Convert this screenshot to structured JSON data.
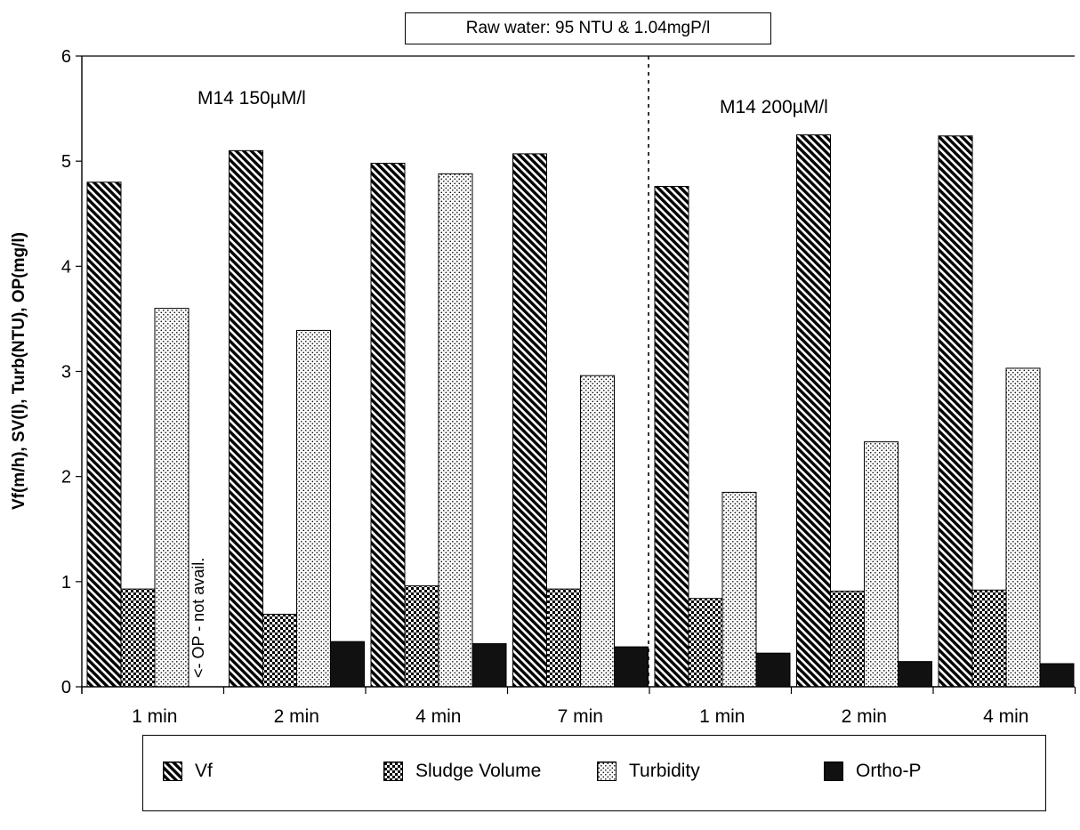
{
  "chart_data": {
    "type": "bar",
    "title": "Raw water: 95 NTU & 1.04mgP/l",
    "ylabel": "Vf(m/h), SV(l), Turb(NTU), OP(mg/l)",
    "xlabel": "",
    "ylim": [
      0,
      6
    ],
    "yticks": [
      "0",
      "1",
      "2",
      "3",
      "4",
      "5",
      "6"
    ],
    "categories": [
      "1 min",
      "2 min",
      "4 min",
      "7 min",
      "1 min",
      "2 min",
      "4 min"
    ],
    "series": [
      {
        "name": "Vf",
        "values": [
          4.8,
          5.1,
          4.98,
          5.07,
          4.76,
          5.25,
          5.24
        ],
        "pattern": "hatch"
      },
      {
        "name": "Sludge Volume",
        "values": [
          0.93,
          0.69,
          0.96,
          0.93,
          0.84,
          0.91,
          0.92
        ],
        "pattern": "checker"
      },
      {
        "name": "Turbidity",
        "values": [
          3.6,
          3.39,
          4.88,
          2.96,
          1.85,
          2.33,
          3.03
        ],
        "pattern": "dots"
      },
      {
        "name": "Ortho-P",
        "values": [
          null,
          0.43,
          0.41,
          0.38,
          0.32,
          0.24,
          0.22
        ],
        "pattern": "solid"
      }
    ],
    "group_labels": [
      "M14 150µM/l",
      "M14 200µM/l"
    ],
    "annotations": [
      "<- OP - not avail."
    ],
    "legend_position": "bottom",
    "grid": false
  },
  "colors": {
    "ortho_p": "#111111",
    "axis": "#000000",
    "background": "#ffffff"
  }
}
